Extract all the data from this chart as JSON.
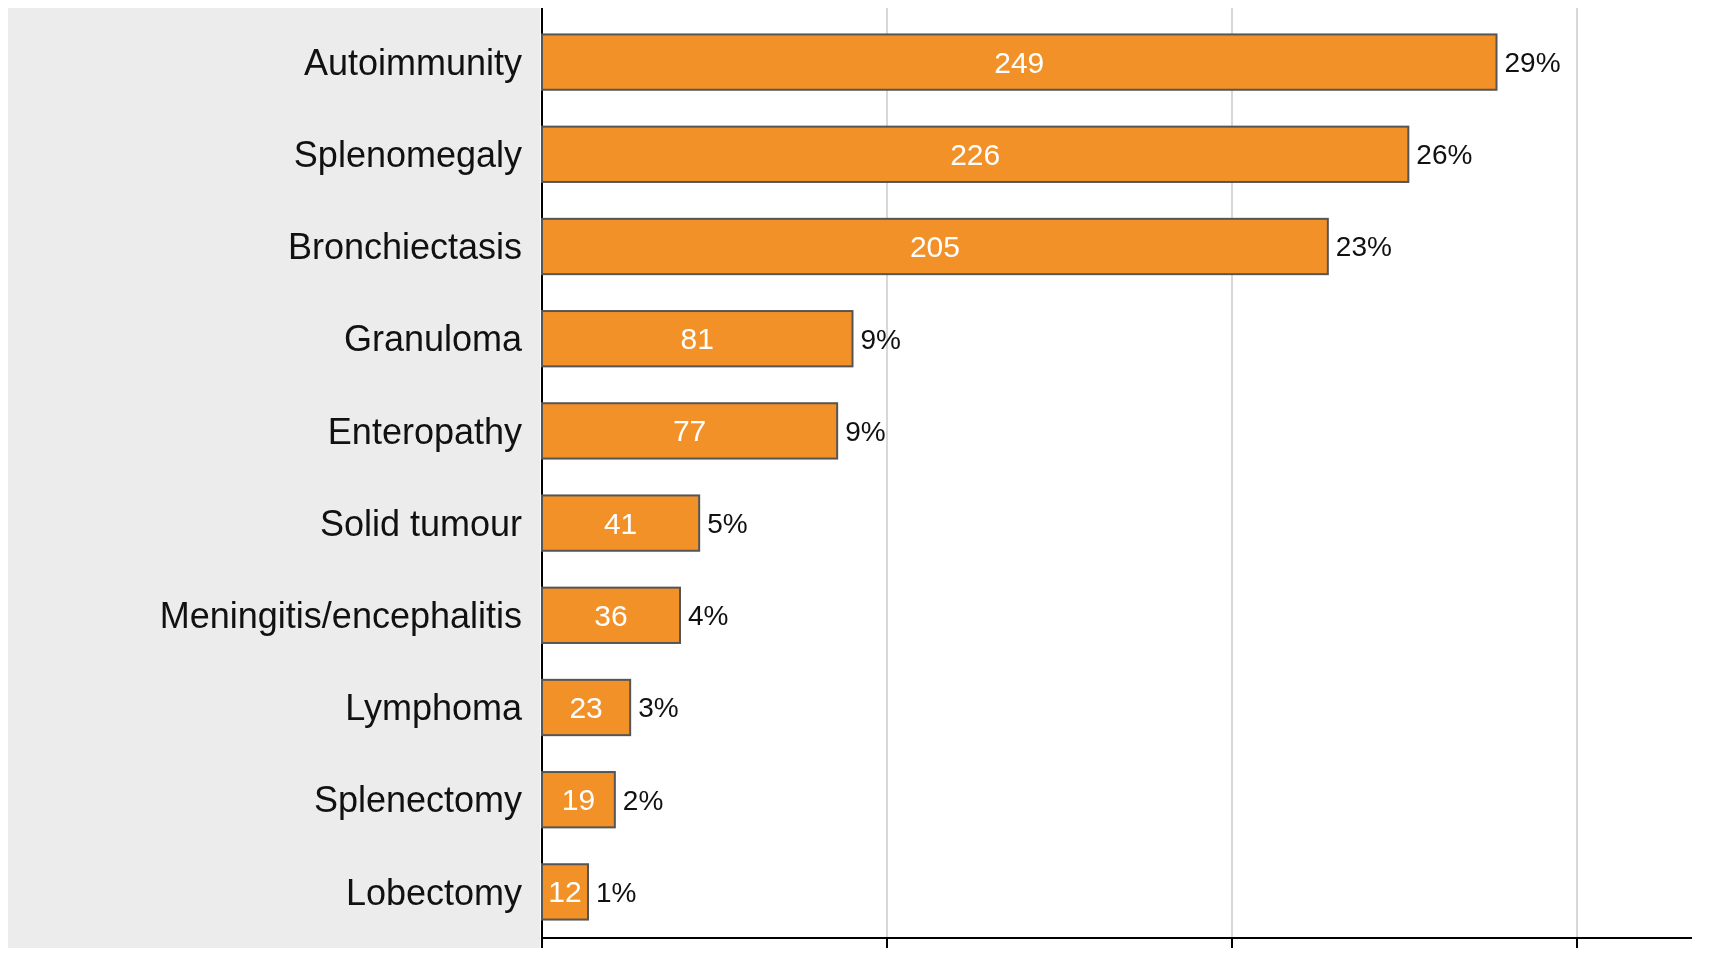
{
  "chart_data": {
    "type": "bar",
    "orientation": "horizontal",
    "categories": [
      "Autoimmunity",
      "Splenomegaly",
      "Bronchiectasis",
      "Granuloma",
      "Enteropathy",
      "Solid tumour",
      "Meningitis/encephalitis",
      "Lymphoma",
      "Splenectomy",
      "Lobectomy"
    ],
    "values": [
      249,
      226,
      205,
      81,
      77,
      41,
      36,
      23,
      19,
      12
    ],
    "color": "#f39129",
    "xlim": [
      0,
      300
    ],
    "xticks": [
      {
        "value": 0,
        "label": null
      },
      {
        "value": 90,
        "label": null
      },
      {
        "value": 180,
        "label": null
      },
      {
        "value": 270,
        "label": null
      }
    ],
    "tick_labels": "y",
    "grid": "x",
    "data_labels": true,
    "annotations": [
      {
        "text": "29%",
        "x": 249,
        "y": "Autoimmunity"
      },
      {
        "text": "26%",
        "x": 226,
        "y": "Splenomegaly"
      },
      {
        "text": "23%",
        "x": 205,
        "y": "Bronchiectasis"
      },
      {
        "text": "9%",
        "x": 81,
        "y": "Granuloma"
      },
      {
        "text": "9%",
        "x": 77,
        "y": "Enteropathy"
      },
      {
        "text": "5%",
        "x": 41,
        "y": "Solid tumour"
      },
      {
        "text": "4%",
        "x": 36,
        "y": "Meningitis/encephalitis"
      },
      {
        "text": "3%",
        "x": 23,
        "y": "Lymphoma"
      },
      {
        "text": "2%",
        "x": 19,
        "y": "Splenectomy"
      },
      {
        "text": "1%",
        "x": 12,
        "y": "Lobectomy"
      }
    ]
  }
}
